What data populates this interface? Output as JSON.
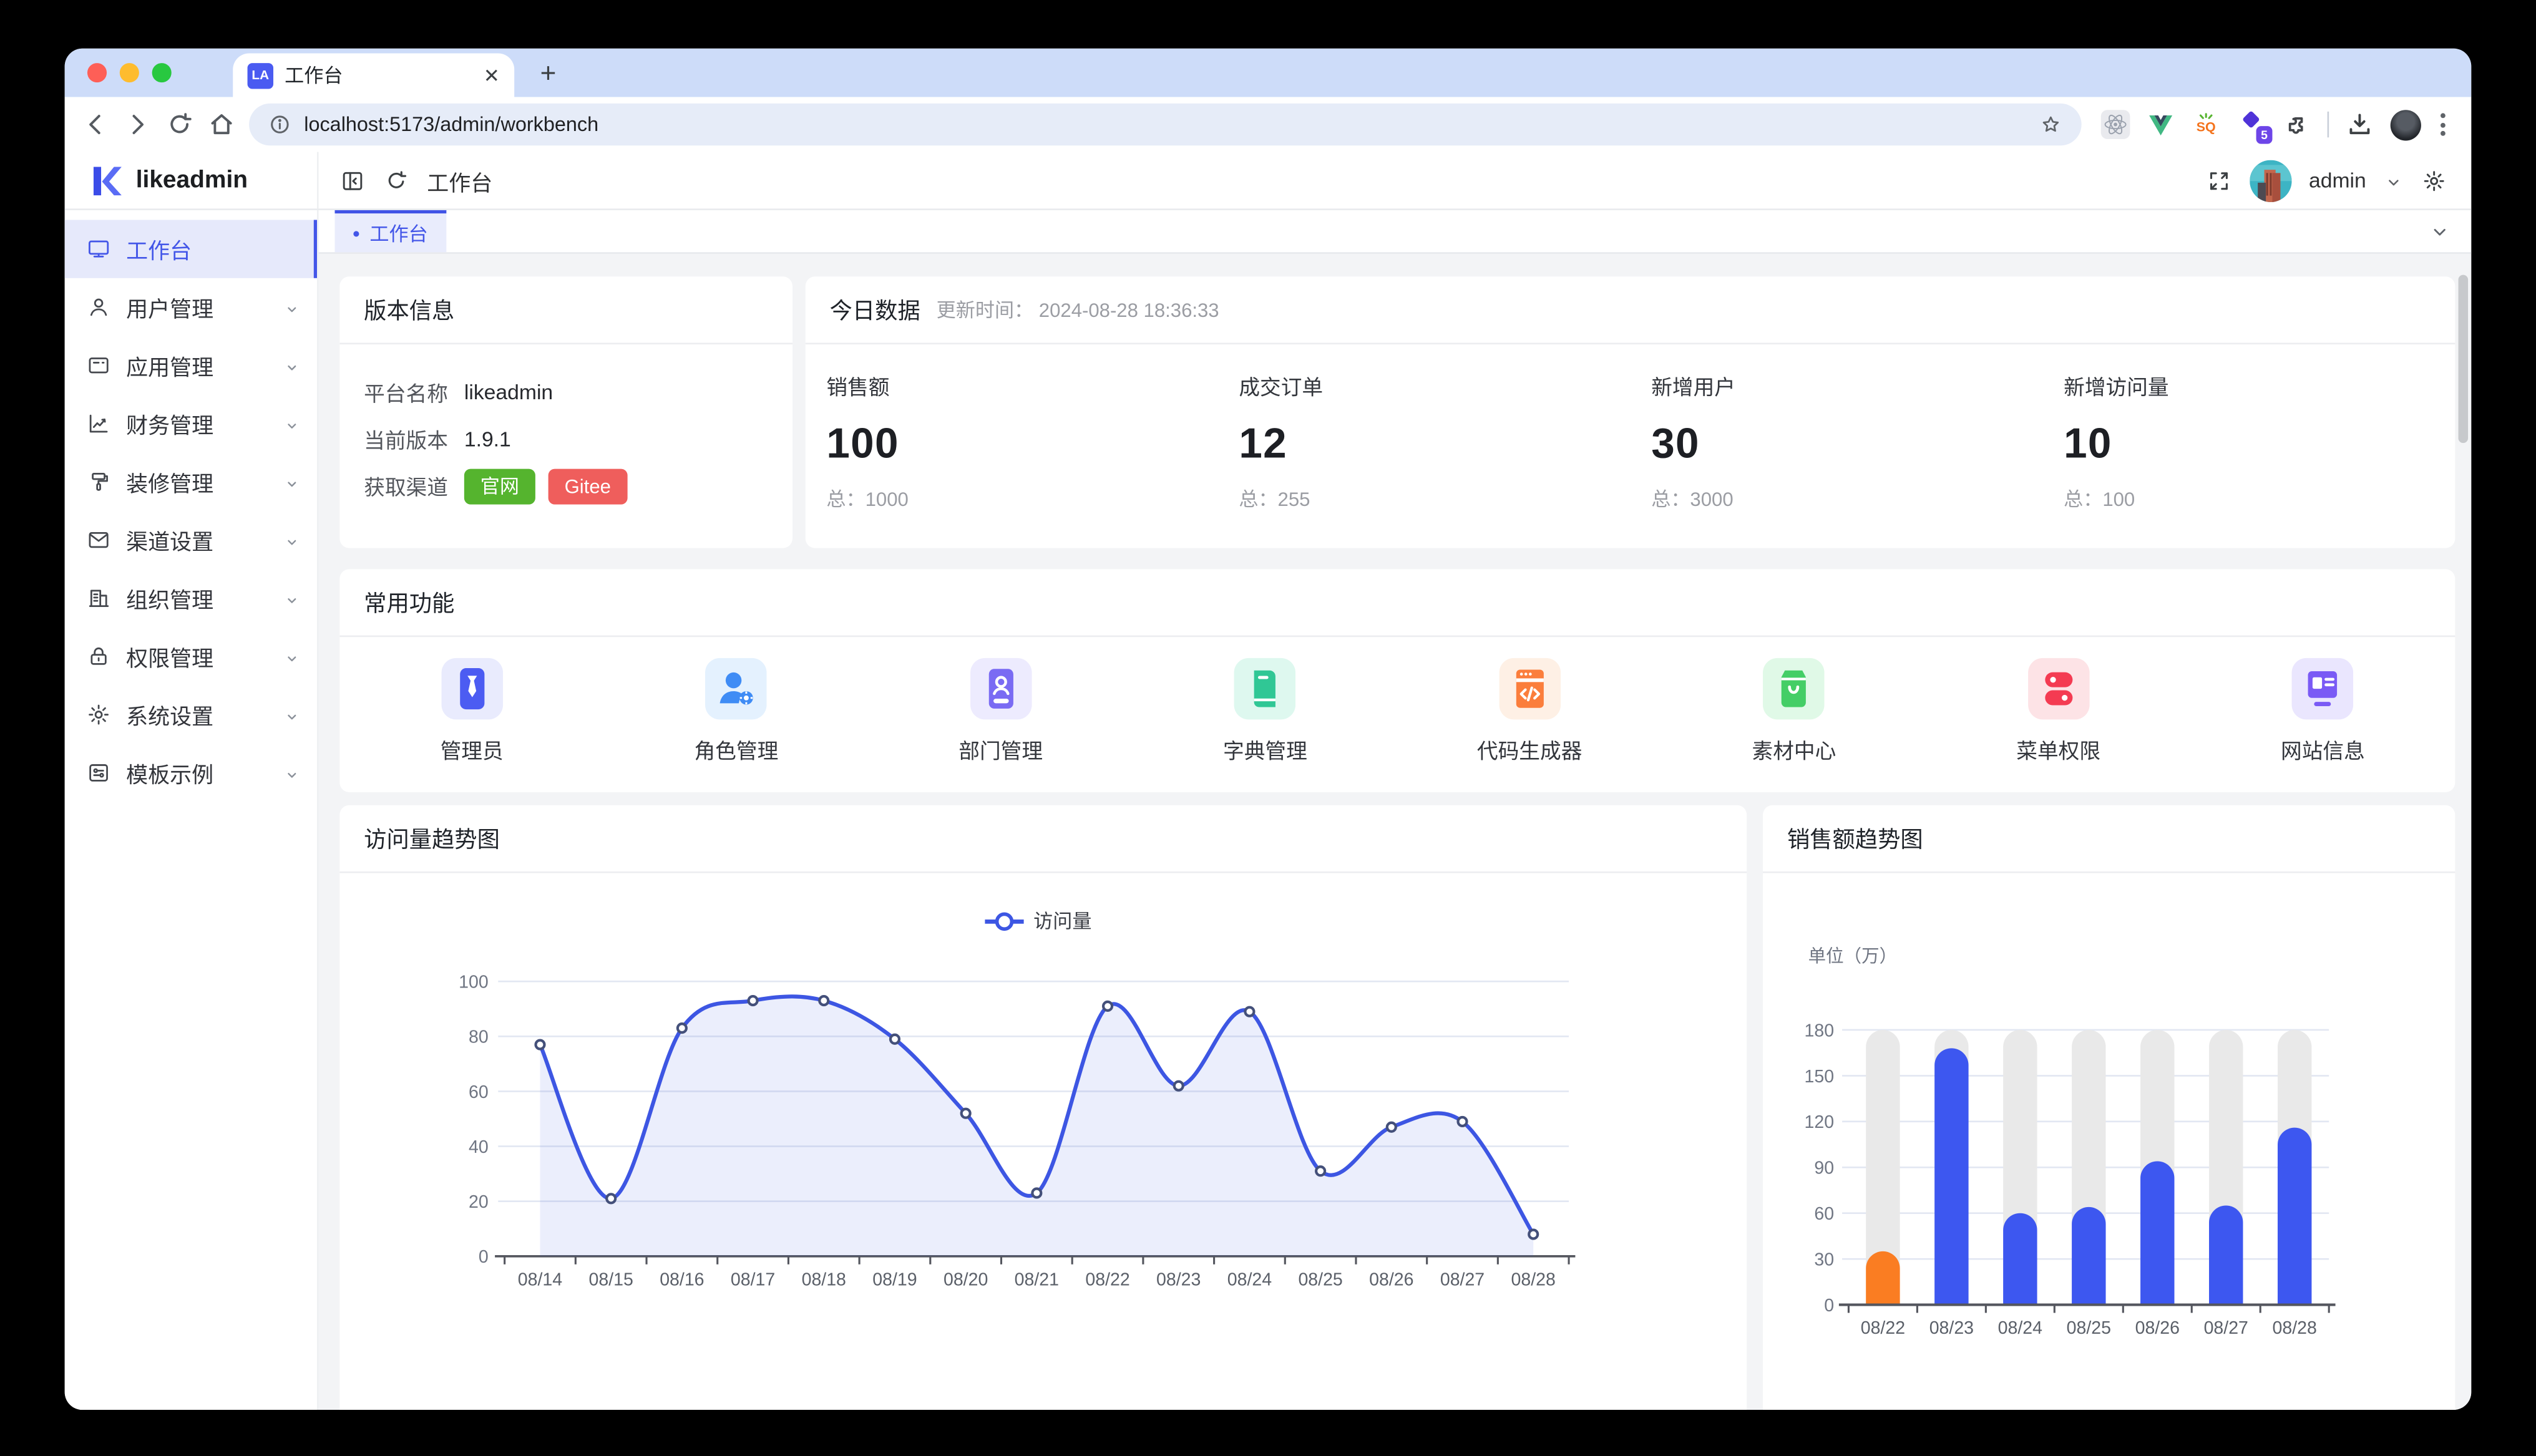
{
  "browser": {
    "tab": {
      "favicon_text": "LA",
      "title": "工作台"
    },
    "url": "localhost:5173/admin/workbench",
    "devtools_badge": "5"
  },
  "app": {
    "logo_text": "likeadmin",
    "header": {
      "breadcrumb": "工作台",
      "username": "admin"
    },
    "tab_chip": {
      "dot": "•",
      "label": "工作台"
    },
    "sidebar": {
      "items": [
        {
          "icon": "monitor-icon",
          "label": "工作台",
          "active": true,
          "chevron": false
        },
        {
          "icon": "user-icon",
          "label": "用户管理",
          "active": false,
          "chevron": true
        },
        {
          "icon": "app-icon",
          "label": "应用管理",
          "active": false,
          "chevron": true
        },
        {
          "icon": "finance-icon",
          "label": "财务管理",
          "active": false,
          "chevron": true
        },
        {
          "icon": "decorate-icon",
          "label": "装修管理",
          "active": false,
          "chevron": true
        },
        {
          "icon": "channel-icon",
          "label": "渠道设置",
          "active": false,
          "chevron": true
        },
        {
          "icon": "org-icon",
          "label": "组织管理",
          "active": false,
          "chevron": true
        },
        {
          "icon": "lock-icon",
          "label": "权限管理",
          "active": false,
          "chevron": true
        },
        {
          "icon": "gear-icon",
          "label": "系统设置",
          "active": false,
          "chevron": true
        },
        {
          "icon": "template-icon",
          "label": "模板示例",
          "active": false,
          "chevron": true
        }
      ]
    }
  },
  "version_card": {
    "title": "版本信息",
    "rows": [
      {
        "label": "平台名称",
        "value": "likeadmin"
      },
      {
        "label": "当前版本",
        "value": "1.9.1"
      }
    ],
    "channel_label": "获取渠道",
    "channel_buttons": [
      {
        "label": "官网",
        "color": "#55b42e"
      },
      {
        "label": "Gitee",
        "color": "#ef5e5c"
      }
    ]
  },
  "today_card": {
    "title": "今日数据",
    "update_text": "更新时间： 2024-08-28 18:36:33",
    "stats": [
      {
        "label": "销售额",
        "value": "100",
        "total": "总：1000"
      },
      {
        "label": "成交订单",
        "value": "12",
        "total": "总：255"
      },
      {
        "label": "新增用户",
        "value": "30",
        "total": "总：3000"
      },
      {
        "label": "新增访问量",
        "value": "10",
        "total": "总：100"
      }
    ]
  },
  "quick_card": {
    "title": "常用功能",
    "items": [
      {
        "icon": "admin-tie-icon",
        "label": "管理员",
        "fg": "#4c5cf2",
        "bg": "#e9ebfd"
      },
      {
        "icon": "role-user-icon",
        "label": "角色管理",
        "fg": "#3f8cf5",
        "bg": "#e4f1fe"
      },
      {
        "icon": "dept-card-icon",
        "label": "部门管理",
        "fg": "#7a6bf3",
        "bg": "#edebfe"
      },
      {
        "icon": "dict-book-icon",
        "label": "字典管理",
        "fg": "#30c795",
        "bg": "#def8ef"
      },
      {
        "icon": "code-window-icon",
        "label": "代码生成器",
        "fg": "#fb7e3c",
        "bg": "#fef0e5"
      },
      {
        "icon": "material-bag-icon",
        "label": "素材中心",
        "fg": "#44ce66",
        "bg": "#e0f9e7"
      },
      {
        "icon": "menu-toggle-icon",
        "label": "菜单权限",
        "fg": "#f43b52",
        "bg": "#fde3e6"
      },
      {
        "icon": "site-info-icon",
        "label": "网站信息",
        "fg": "#7a5af5",
        "bg": "#eae6fe"
      }
    ]
  },
  "chart_data": [
    {
      "type": "line",
      "title": "访问量趋势图",
      "legend": [
        "访问量"
      ],
      "x": [
        "08/14",
        "08/15",
        "08/16",
        "08/17",
        "08/18",
        "08/19",
        "08/20",
        "08/21",
        "08/22",
        "08/23",
        "08/24",
        "08/25",
        "08/26",
        "08/27",
        "08/28"
      ],
      "series": [
        {
          "name": "访问量",
          "values": [
            77,
            21,
            83,
            93,
            93,
            79,
            52,
            23,
            91,
            62,
            89,
            31,
            47,
            49,
            8
          ]
        }
      ],
      "ylim": [
        0,
        100
      ],
      "ytick": 20,
      "grid": true,
      "legend_position": "top-center",
      "line_color": "#3d56e3",
      "area_color": "rgba(61,86,227,0.10)"
    },
    {
      "type": "bar",
      "title": "销售额趋势图",
      "unit_label": "单位（万）",
      "categories": [
        "08/22",
        "08/23",
        "08/24",
        "08/25",
        "08/26",
        "08/27",
        "08/28"
      ],
      "values": [
        35,
        168,
        60,
        64,
        94,
        65,
        116
      ],
      "ylim": [
        0,
        180
      ],
      "ytick": 30,
      "grid": true,
      "bar_color": "#3d57f0",
      "highlight_index": 0,
      "highlight_color": "#fa7d22",
      "track_color": "#e9e9e9"
    }
  ]
}
